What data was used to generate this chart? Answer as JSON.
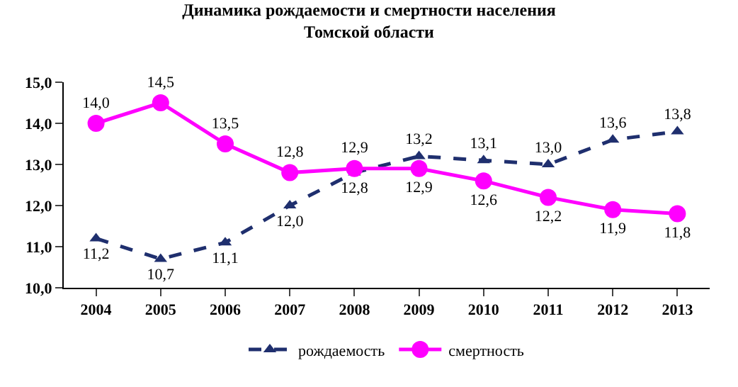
{
  "chart_data": {
    "type": "line",
    "title": "Динамика рождаемости и смертности населения\nТомской области",
    "categories": [
      "2004",
      "2005",
      "2006",
      "2007",
      "2008",
      "2009",
      "2010",
      "2011",
      "2012",
      "2013"
    ],
    "series": [
      {
        "name": "рождаемость",
        "color": "#1f2f6e",
        "marker": "triangle",
        "line_style": "dashed",
        "values": [
          11.2,
          10.7,
          11.1,
          12.0,
          12.8,
          13.2,
          13.1,
          13.0,
          13.6,
          13.8
        ],
        "value_labels": [
          "11,2",
          "10,7",
          "11,1",
          "12,0",
          "12,8",
          "13,2",
          "13,1",
          "13,0",
          "13,6",
          "13,8"
        ]
      },
      {
        "name": "смертность",
        "color": "#ff00ff",
        "marker": "circle",
        "line_style": "solid",
        "values": [
          14.0,
          14.5,
          13.5,
          12.8,
          12.9,
          12.9,
          12.6,
          12.2,
          11.9,
          11.8
        ],
        "value_labels": [
          "14,0",
          "14,5",
          "13,5",
          "12,8",
          "12,9",
          "12,9",
          "12,6",
          "12,2",
          "11,9",
          "11,8"
        ]
      }
    ],
    "ylim": [
      10,
      15
    ],
    "yticks": [
      {
        "value": 10,
        "label": "10,0"
      },
      {
        "value": 11,
        "label": "11,0"
      },
      {
        "value": 12,
        "label": "12,0"
      },
      {
        "value": 13,
        "label": "13,0"
      },
      {
        "value": 14,
        "label": "14,0"
      },
      {
        "value": 15,
        "label": "15,0"
      }
    ],
    "legend": "bottom"
  }
}
